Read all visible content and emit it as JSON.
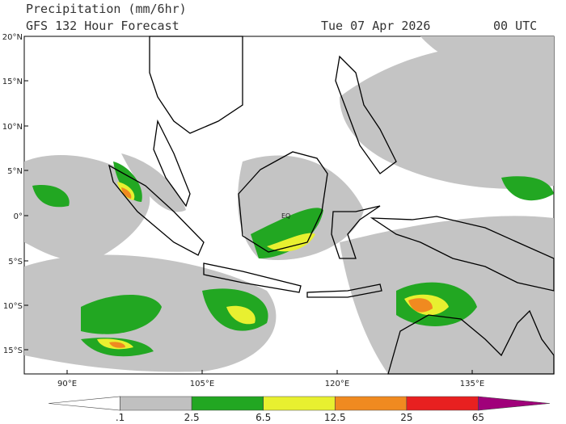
{
  "header": {
    "title": "Precipitation (mm/6hr)",
    "subtitle": "GFS 132 Hour Forecast",
    "date": "Tue 07 Apr 2026",
    "time": "00 UTC"
  },
  "map": {
    "lat_labels": [
      "20°N",
      "15°N",
      "10°N",
      "5°N",
      "0°",
      "5°S",
      "10°S",
      "15°S"
    ],
    "lon_labels": [
      "90°E",
      "105°E",
      "120°E",
      "135°E"
    ],
    "equator_label": "EQ"
  },
  "colorbar": {
    "colors": [
      "#ffffff",
      "#c0c0c0",
      "#22a722",
      "#e8f030",
      "#f08a20",
      "#e82020",
      "#a0007a"
    ],
    "labels": [
      ".1",
      "2.5",
      "6.5",
      "12.5",
      "25",
      "65"
    ]
  }
}
